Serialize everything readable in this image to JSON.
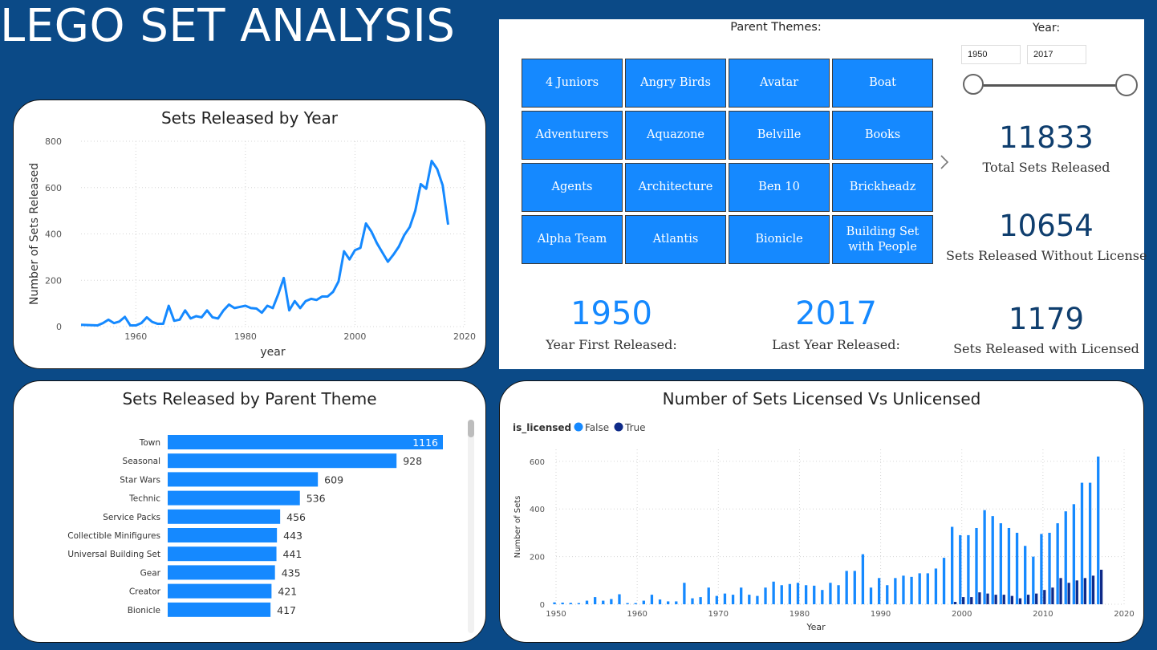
{
  "page_title": "LEGO SET ANALYSIS",
  "filters": {
    "parent_themes_label": "Parent Themes:",
    "themes": [
      "4 Juniors",
      "Angry Birds",
      "Avatar",
      "Boat",
      "Adventurers",
      "Aquazone",
      "Belville",
      "Books",
      "Agents",
      "Architecture",
      "Ben 10",
      "Brickheadz",
      "Alpha Team",
      "Atlantis",
      "Bionicle",
      "Building Set with People"
    ],
    "year_label": "Year:",
    "year_from": "1950",
    "year_to": "2017"
  },
  "kpis": {
    "total_sets": {
      "value": "11833",
      "label": "Total Sets Released"
    },
    "without_license": {
      "value": "10654",
      "label": "Sets Released Without License"
    },
    "with_license": {
      "value": "1179",
      "label": "Sets Released with Licensed"
    },
    "first_year": {
      "value": "1950",
      "label": "Year First Released:"
    },
    "last_year": {
      "value": "2017",
      "label": "Last Year Released:"
    }
  },
  "colors": {
    "accent": "#1589ff",
    "dark_navy": "#0e2a88",
    "kpi_dark": "#0f3e6e",
    "background": "#0b4a87"
  },
  "chart_data": [
    {
      "type": "line",
      "title": "Sets Released by Year",
      "xlabel": "year",
      "ylabel": "Number of Sets Released",
      "xlim": [
        1950,
        2020
      ],
      "ylim": [
        0,
        800
      ],
      "xticks": [
        1960,
        1980,
        2000,
        2020
      ],
      "yticks": [
        0,
        200,
        400,
        600,
        800
      ],
      "x": [
        1950,
        1951,
        1952,
        1953,
        1954,
        1955,
        1956,
        1957,
        1958,
        1959,
        1960,
        1961,
        1962,
        1963,
        1964,
        1965,
        1966,
        1967,
        1968,
        1969,
        1970,
        1971,
        1972,
        1973,
        1974,
        1975,
        1976,
        1977,
        1978,
        1979,
        1980,
        1981,
        1982,
        1983,
        1984,
        1985,
        1986,
        1987,
        1988,
        1989,
        1990,
        1991,
        1992,
        1993,
        1994,
        1995,
        1996,
        1997,
        1998,
        1999,
        2000,
        2001,
        2002,
        2003,
        2004,
        2005,
        2006,
        2007,
        2008,
        2009,
        2010,
        2011,
        2012,
        2013,
        2014,
        2015,
        2016,
        2017
      ],
      "y": [
        8,
        7,
        6,
        5,
        15,
        30,
        15,
        22,
        42,
        5,
        5,
        15,
        40,
        20,
        12,
        12,
        90,
        25,
        30,
        70,
        35,
        45,
        40,
        70,
        40,
        35,
        70,
        95,
        80,
        85,
        90,
        80,
        78,
        60,
        90,
        80,
        140,
        210,
        70,
        110,
        80,
        110,
        120,
        115,
        130,
        130,
        150,
        195,
        325,
        290,
        330,
        340,
        445,
        410,
        360,
        320,
        280,
        310,
        345,
        395,
        430,
        500,
        615,
        595,
        715,
        680,
        610,
        440
      ],
      "grid": true,
      "color": "#1589ff"
    },
    {
      "type": "bar",
      "orientation": "horizontal",
      "title": "Sets Released by Parent Theme",
      "categories": [
        "Town",
        "Seasonal",
        "Star Wars",
        "Technic",
        "Service Packs",
        "Collectible Minifigures",
        "Universal Building Set",
        "Gear",
        "Creator",
        "Bionicle"
      ],
      "values": [
        1116,
        928,
        609,
        536,
        456,
        443,
        441,
        435,
        421,
        417
      ],
      "color": "#1589ff"
    },
    {
      "type": "bar",
      "title": "Number of Sets Licensed Vs Unlicensed",
      "legend_title": "is_licensed",
      "legend_position": "top-left",
      "xlabel": "Year",
      "ylabel": "Number of Sets",
      "xlim": [
        1950,
        2020
      ],
      "ylim": [
        0,
        650
      ],
      "xticks": [
        1950,
        1960,
        1970,
        1980,
        1990,
        2000,
        2010,
        2020
      ],
      "yticks": [
        0,
        200,
        400,
        600
      ],
      "x": [
        1950,
        1951,
        1952,
        1953,
        1954,
        1955,
        1956,
        1957,
        1958,
        1959,
        1960,
        1961,
        1962,
        1963,
        1964,
        1965,
        1966,
        1967,
        1968,
        1969,
        1970,
        1971,
        1972,
        1973,
        1974,
        1975,
        1976,
        1977,
        1978,
        1979,
        1980,
        1981,
        1982,
        1983,
        1984,
        1985,
        1986,
        1987,
        1988,
        1989,
        1990,
        1991,
        1992,
        1993,
        1994,
        1995,
        1996,
        1997,
        1998,
        1999,
        2000,
        2001,
        2002,
        2003,
        2004,
        2005,
        2006,
        2007,
        2008,
        2009,
        2010,
        2011,
        2012,
        2013,
        2014,
        2015,
        2016,
        2017
      ],
      "series": [
        {
          "name": "False",
          "color": "#1589ff",
          "values": [
            8,
            7,
            6,
            5,
            15,
            30,
            15,
            22,
            42,
            5,
            5,
            15,
            40,
            20,
            12,
            12,
            90,
            25,
            30,
            70,
            35,
            45,
            40,
            70,
            40,
            35,
            70,
            95,
            80,
            85,
            90,
            80,
            78,
            60,
            90,
            80,
            140,
            140,
            210,
            70,
            110,
            80,
            110,
            120,
            115,
            130,
            130,
            150,
            195,
            325,
            290,
            290,
            320,
            395,
            370,
            340,
            320,
            300,
            245,
            200,
            295,
            300,
            340,
            390,
            420,
            510,
            510,
            620
          ]
        },
        {
          "name": "True",
          "color": "#0e2a88",
          "values": [
            0,
            0,
            0,
            0,
            0,
            0,
            0,
            0,
            0,
            0,
            0,
            0,
            0,
            0,
            0,
            0,
            0,
            0,
            0,
            0,
            0,
            0,
            0,
            0,
            0,
            0,
            0,
            0,
            0,
            0,
            0,
            0,
            0,
            0,
            0,
            0,
            0,
            0,
            0,
            0,
            0,
            0,
            0,
            0,
            0,
            0,
            0,
            0,
            0,
            10,
            30,
            30,
            50,
            45,
            40,
            40,
            35,
            25,
            40,
            45,
            60,
            70,
            110,
            90,
            100,
            110,
            120,
            145
          ]
        }
      ]
    }
  ]
}
